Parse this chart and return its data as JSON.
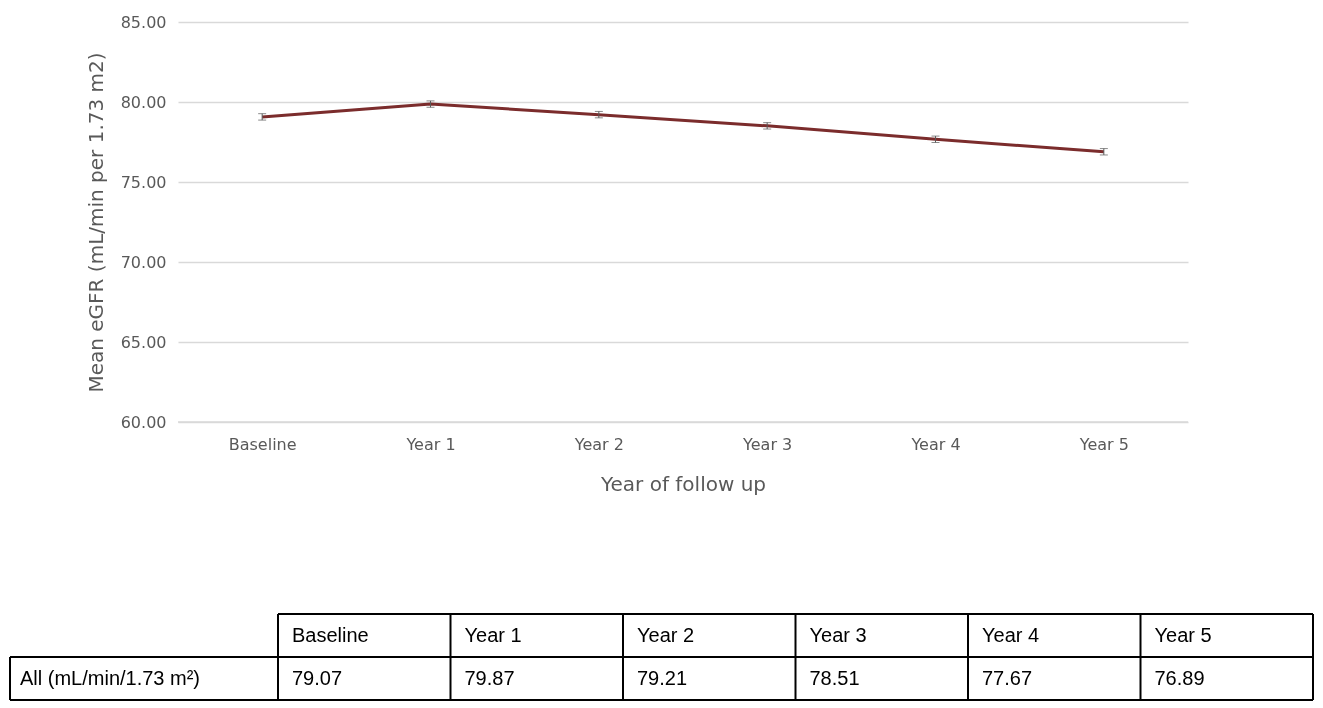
{
  "chart_data": {
    "type": "line",
    "xlabel": "Year of follow up",
    "ylabel": "Mean eGFR (mL/min per 1.73 m2)",
    "categories": [
      "Baseline",
      "Year 1",
      "Year 2",
      "Year 3",
      "Year 4",
      "Year 5"
    ],
    "series": [
      {
        "name": "All (mL/min/1.73 m²)",
        "color": "#7b2c2c",
        "values": [
          79.07,
          79.87,
          79.21,
          78.51,
          77.67,
          76.89
        ],
        "errors": [
          0.2,
          0.2,
          0.2,
          0.2,
          0.2,
          0.2
        ]
      }
    ],
    "ylim": [
      60,
      85
    ],
    "yticks": [
      {
        "value": 60,
        "label": "60.00"
      },
      {
        "value": 65,
        "label": "65.00"
      },
      {
        "value": 70,
        "label": "70.00"
      },
      {
        "value": 75,
        "label": "75.00"
      },
      {
        "value": 80,
        "label": "80.00"
      },
      {
        "value": 85,
        "label": "85.00"
      }
    ],
    "grid": "y",
    "legend": false,
    "marker": "none",
    "line_style": "solid",
    "data_labels": true
  }
}
